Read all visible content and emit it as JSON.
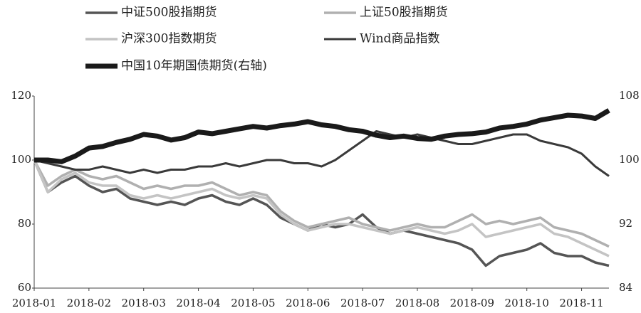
{
  "chart_data": {
    "type": "line",
    "categories": [
      "2018-01",
      null,
      null,
      null,
      "2018-02",
      null,
      null,
      null,
      "2018-03",
      null,
      null,
      null,
      "2018-04",
      null,
      null,
      null,
      "2018-05",
      null,
      null,
      null,
      "2018-06",
      null,
      null,
      null,
      "2018-07",
      null,
      null,
      null,
      "2018-08",
      null,
      null,
      null,
      "2018-09",
      null,
      null,
      null,
      "2018-10",
      null,
      null,
      null,
      "2018-11",
      null,
      null
    ],
    "ylim": [
      60,
      120
    ],
    "yticks": [
      60,
      80,
      100,
      120
    ],
    "y2lim": [
      84,
      108
    ],
    "y2ticks": [
      84,
      92,
      100,
      108
    ],
    "series": [
      {
        "name": "中证500股指期货",
        "color": "#555555",
        "width": 3.5,
        "values": [
          100,
          90,
          93,
          95,
          92,
          90,
          91,
          88,
          87,
          86,
          87,
          86,
          88,
          89,
          87,
          86,
          88,
          86,
          82,
          80,
          78,
          80,
          79,
          80,
          83,
          79,
          77,
          78,
          77,
          76,
          75,
          74,
          72,
          67,
          70,
          71,
          72,
          74,
          71,
          70,
          70,
          68,
          67
        ]
      },
      {
        "name": "上证50股指期货",
        "color": "#b0b0b0",
        "width": 3.5,
        "values": [
          100,
          92,
          95,
          97,
          95,
          94,
          95,
          93,
          91,
          92,
          91,
          92,
          92,
          93,
          91,
          89,
          90,
          89,
          84,
          81,
          79,
          80,
          81,
          82,
          80,
          79,
          78,
          79,
          80,
          79,
          79,
          81,
          83,
          80,
          81,
          80,
          81,
          82,
          79,
          78,
          77,
          75,
          73
        ]
      },
      {
        "name": "沪深300指数期货",
        "color": "#c4c4c4",
        "width": 3.5,
        "values": [
          100,
          90,
          94,
          96,
          93,
          92,
          92,
          89,
          88,
          89,
          88,
          89,
          90,
          91,
          89,
          88,
          89,
          88,
          83,
          80,
          78,
          79,
          80,
          80,
          79,
          78,
          77,
          78,
          79,
          78,
          77,
          78,
          80,
          76,
          77,
          78,
          79,
          80,
          77,
          76,
          74,
          72,
          70
        ]
      },
      {
        "name": "Wind商品指数",
        "color": "#3a3a3a",
        "width": 3,
        "values": [
          100,
          99,
          98,
          97,
          97,
          98,
          97,
          96,
          97,
          96,
          97,
          97,
          98,
          98,
          99,
          98,
          99,
          100,
          100,
          99,
          99,
          98,
          100,
          103,
          106,
          109,
          108,
          107,
          108,
          107,
          106,
          105,
          105,
          106,
          107,
          108,
          108,
          106,
          105,
          104,
          102,
          98,
          95
        ]
      },
      {
        "name": "中国10年期国债期货(右轴)",
        "color": "#1a1a1a",
        "width": 7,
        "axis": "y2",
        "values": [
          100,
          100,
          99.8,
          100.5,
          101.5,
          101.7,
          102.2,
          102.6,
          103.2,
          103,
          102.5,
          102.8,
          103.5,
          103.3,
          103.6,
          103.9,
          104.2,
          104,
          104.3,
          104.5,
          104.8,
          104.4,
          104.2,
          103.8,
          103.6,
          103.1,
          102.8,
          103,
          102.7,
          102.6,
          103,
          103.2,
          103.3,
          103.5,
          104,
          104.2,
          104.5,
          105,
          105.3,
          105.6,
          105.5,
          105.2,
          106.2
        ]
      }
    ]
  }
}
